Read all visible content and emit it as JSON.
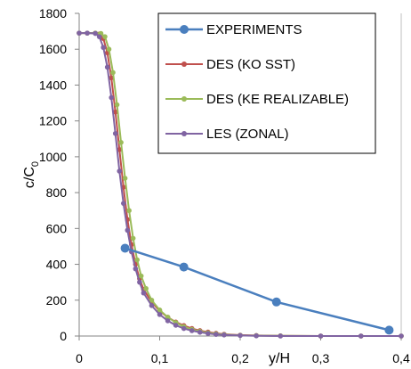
{
  "chart_data": {
    "type": "line",
    "xlabel": "y/H",
    "ylabel": "c/C",
    "ylabel_subscript": "0",
    "xlim": [
      0,
      0.4
    ],
    "ylim": [
      0,
      1800
    ],
    "x_ticks": [
      "0",
      "0,1",
      "0,2",
      "0,3",
      "0,4"
    ],
    "y_ticks": [
      "0",
      "200",
      "400",
      "600",
      "800",
      "1000",
      "1200",
      "1400",
      "1600",
      "1800"
    ],
    "grid": false,
    "legend_position": "top-right",
    "series": [
      {
        "name": "EXPERIMENTS",
        "color": "#4a7fbe",
        "marker_size": "large",
        "points": [
          [
            0.057,
            490
          ],
          [
            0.13,
            385
          ],
          [
            0.245,
            190
          ],
          [
            0.385,
            33
          ]
        ]
      },
      {
        "name": "DES (KO SST)",
        "color": "#c0504d",
        "points": [
          [
            0,
            1690
          ],
          [
            0.01,
            1690
          ],
          [
            0.02,
            1690
          ],
          [
            0.025,
            1685
          ],
          [
            0.03,
            1660
          ],
          [
            0.035,
            1580
          ],
          [
            0.04,
            1440
          ],
          [
            0.045,
            1250
          ],
          [
            0.05,
            1040
          ],
          [
            0.055,
            830
          ],
          [
            0.06,
            650
          ],
          [
            0.065,
            510
          ],
          [
            0.07,
            400
          ],
          [
            0.075,
            320
          ],
          [
            0.08,
            260
          ],
          [
            0.09,
            190
          ],
          [
            0.1,
            140
          ],
          [
            0.11,
            105
          ],
          [
            0.12,
            78
          ],
          [
            0.13,
            58
          ],
          [
            0.14,
            42
          ],
          [
            0.15,
            30
          ],
          [
            0.16,
            22
          ],
          [
            0.17,
            15
          ],
          [
            0.18,
            10
          ],
          [
            0.2,
            5
          ],
          [
            0.22,
            3
          ],
          [
            0.25,
            1
          ],
          [
            0.3,
            0
          ],
          [
            0.35,
            0
          ],
          [
            0.4,
            0
          ]
        ]
      },
      {
        "name": "DES (KE REALIZABLE)",
        "color": "#9bbb59",
        "points": [
          [
            0,
            1690
          ],
          [
            0.01,
            1690
          ],
          [
            0.02,
            1690
          ],
          [
            0.027,
            1688
          ],
          [
            0.032,
            1670
          ],
          [
            0.037,
            1600
          ],
          [
            0.042,
            1470
          ],
          [
            0.047,
            1290
          ],
          [
            0.052,
            1080
          ],
          [
            0.057,
            880
          ],
          [
            0.062,
            700
          ],
          [
            0.067,
            545
          ],
          [
            0.072,
            425
          ],
          [
            0.077,
            335
          ],
          [
            0.083,
            265
          ],
          [
            0.09,
            200
          ],
          [
            0.1,
            145
          ],
          [
            0.11,
            105
          ],
          [
            0.12,
            75
          ],
          [
            0.13,
            52
          ],
          [
            0.14,
            37
          ],
          [
            0.15,
            26
          ],
          [
            0.16,
            18
          ],
          [
            0.17,
            12
          ],
          [
            0.18,
            8
          ],
          [
            0.2,
            4
          ],
          [
            0.22,
            2
          ],
          [
            0.25,
            1
          ],
          [
            0.3,
            0
          ],
          [
            0.35,
            0
          ],
          [
            0.4,
            0
          ]
        ]
      },
      {
        "name": "LES (ZONAL)",
        "color": "#8064a2",
        "points": [
          [
            0,
            1690
          ],
          [
            0.01,
            1690
          ],
          [
            0.02,
            1688
          ],
          [
            0.025,
            1670
          ],
          [
            0.03,
            1610
          ],
          [
            0.035,
            1500
          ],
          [
            0.04,
            1330
          ],
          [
            0.045,
            1130
          ],
          [
            0.05,
            920
          ],
          [
            0.055,
            740
          ],
          [
            0.06,
            590
          ],
          [
            0.065,
            470
          ],
          [
            0.07,
            375
          ],
          [
            0.075,
            300
          ],
          [
            0.08,
            240
          ],
          [
            0.09,
            170
          ],
          [
            0.1,
            120
          ],
          [
            0.11,
            85
          ],
          [
            0.12,
            60
          ],
          [
            0.13,
            42
          ],
          [
            0.14,
            30
          ],
          [
            0.15,
            21
          ],
          [
            0.16,
            14
          ],
          [
            0.17,
            9
          ],
          [
            0.18,
            6
          ],
          [
            0.2,
            3
          ],
          [
            0.22,
            1
          ],
          [
            0.25,
            0
          ],
          [
            0.3,
            0
          ],
          [
            0.35,
            0
          ],
          [
            0.4,
            0
          ]
        ]
      }
    ]
  }
}
